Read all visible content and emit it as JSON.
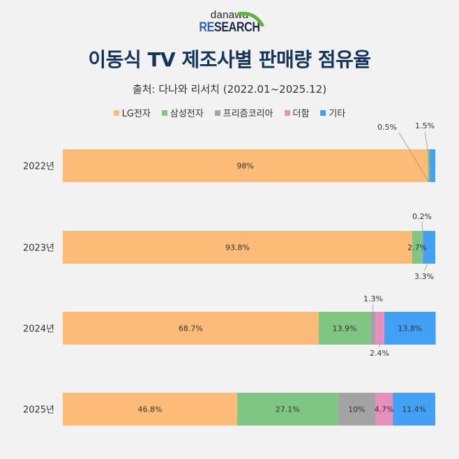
{
  "logo": {
    "brand": "danawa",
    "research_prefix": "RE",
    "research_suffix": "SEARCH"
  },
  "header": {
    "title": "이동식 TV 제조사별 판매량 점유율",
    "subtitle": "출처: 다나와 리서치 (2022.01~2025.12)"
  },
  "chart_data": {
    "type": "bar",
    "orientation": "horizontal",
    "stacked": true,
    "title": "이동식 TV 제조사별 판매량 점유율",
    "subtitle": "출처: 다나와 리서치 (2022.01~2025.12)",
    "xlabel": "",
    "ylabel": "",
    "xlim": [
      0,
      100
    ],
    "unit": "%",
    "grid": false,
    "legend_position": "top",
    "categories": [
      "2022년",
      "2023년",
      "2024년",
      "2025년"
    ],
    "series": [
      {
        "name": "LG전자",
        "color": "#fdbb78",
        "values": [
          98,
          93.8,
          68.7,
          46.8
        ],
        "labels": [
          "98%",
          "93.8%",
          "68.7%",
          "46.8%"
        ]
      },
      {
        "name": "삼성전자",
        "color": "#80c683",
        "values": [
          0.5,
          2.7,
          13.9,
          27.1
        ],
        "labels": [
          "0.5%",
          "2.7%",
          "13.9%",
          "27.1%"
        ]
      },
      {
        "name": "프리즘코리아",
        "color": "#a3a3a3",
        "values": [
          0,
          0.2,
          1.3,
          10
        ],
        "labels": [
          "",
          "0.2%",
          "1.3%",
          "10%"
        ]
      },
      {
        "name": "더함",
        "color": "#e68fbd",
        "values": [
          0,
          0,
          2.4,
          4.7
        ],
        "labels": [
          "",
          "",
          "2.4%",
          "4.7%"
        ]
      },
      {
        "name": "기타",
        "color": "#42a1f5",
        "values": [
          1.5,
          3.3,
          13.8,
          11.4
        ],
        "labels": [
          "1.5%",
          "3.3%",
          "13.8%",
          "11.4%"
        ]
      }
    ],
    "callouts": [
      {
        "category": "2022년",
        "series": "삼성전자",
        "label": "0.5%",
        "side": "above"
      },
      {
        "category": "2022년",
        "series": "기타",
        "label": "1.5%",
        "side": "above"
      },
      {
        "category": "2023년",
        "series": "프리즘코리아",
        "label": "0.2%",
        "side": "above"
      },
      {
        "category": "2023년",
        "series": "기타",
        "label": "3.3%",
        "side": "below"
      },
      {
        "category": "2024년",
        "series": "프리즘코리아",
        "label": "1.3%",
        "side": "above"
      },
      {
        "category": "2024년",
        "series": "더함",
        "label": "2.4%",
        "side": "below"
      }
    ]
  }
}
